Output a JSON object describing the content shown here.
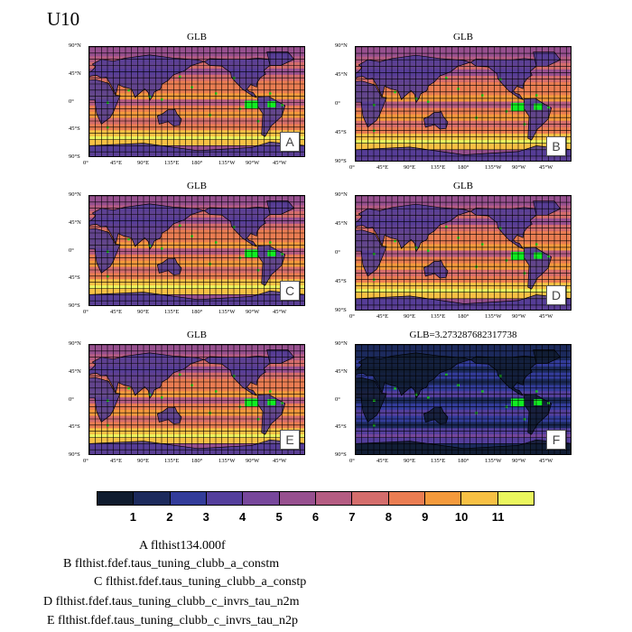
{
  "figure": {
    "title": "U10"
  },
  "panels": [
    {
      "id": "A",
      "title": "GLB",
      "letter": "A",
      "style": "warm"
    },
    {
      "id": "B",
      "title": "GLB",
      "letter": "B",
      "style": "warm"
    },
    {
      "id": "C",
      "title": "GLB",
      "letter": "C",
      "style": "warm"
    },
    {
      "id": "D",
      "title": "GLB",
      "letter": "D",
      "style": "warm"
    },
    {
      "id": "E",
      "title": "GLB",
      "letter": "E",
      "style": "warm"
    },
    {
      "id": "F",
      "title": "GLB=3.273287682317738",
      "letter": "F",
      "style": "dark"
    }
  ],
  "axes": {
    "lat_ticks": [
      "90°N",
      "45°N",
      "0°",
      "45°S",
      "90°S"
    ],
    "lon_ticks": [
      "0°",
      "45°E",
      "90°E",
      "135°E",
      "180°",
      "135°W",
      "90°W",
      "45°W"
    ]
  },
  "colorbar": {
    "colors": [
      "#0f1b2e",
      "#1c2a5c",
      "#333c9a",
      "#543f9c",
      "#77479b",
      "#97508f",
      "#b45c82",
      "#d46d6c",
      "#ea7d52",
      "#f49a3c",
      "#f7c044",
      "#eaf65e"
    ],
    "labels": [
      "1",
      "2",
      "3",
      "4",
      "5",
      "6",
      "7",
      "8",
      "9",
      "10",
      "11"
    ]
  },
  "legend": [
    "A  flthist134.000f",
    "B  flthist.fdef.taus_tuning_clubb_a_constm",
    "C  flthist.fdef.taus_tuning_clubb_a_constp",
    "D  flthist.fdef.taus_tuning_clubb_c_invrs_tau_n2m",
    "E  flthist.fdef.taus_tuning_clubb_c_invrs_tau_n2p"
  ]
}
